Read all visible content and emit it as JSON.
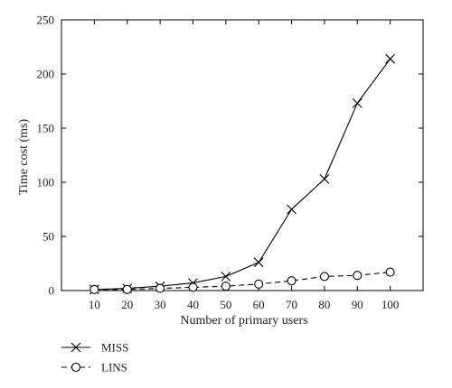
{
  "chart_data": {
    "type": "line",
    "title": "",
    "xlabel": "Number of primary users",
    "ylabel": "Time cost (ms)",
    "x": [
      10,
      20,
      30,
      40,
      50,
      60,
      70,
      80,
      90,
      100
    ],
    "xlim": [
      0,
      110
    ],
    "ylim": [
      0,
      250
    ],
    "xticks": [
      10,
      20,
      30,
      40,
      50,
      60,
      70,
      80,
      90,
      100
    ],
    "yticks": [
      0,
      50,
      100,
      150,
      200,
      250
    ],
    "grid": false,
    "legend_position": "bottom-left, below plot",
    "series": [
      {
        "name": "MISS",
        "values": [
          1,
          2,
          4,
          7,
          13,
          26,
          75,
          103,
          173,
          214
        ],
        "line_style": "solid",
        "marker": "x",
        "color": "#000000"
      },
      {
        "name": "LINS",
        "values": [
          1,
          1,
          2,
          3,
          4,
          6,
          9,
          13,
          14,
          17
        ],
        "line_style": "dashed",
        "marker": "circle",
        "color": "#000000"
      }
    ]
  }
}
